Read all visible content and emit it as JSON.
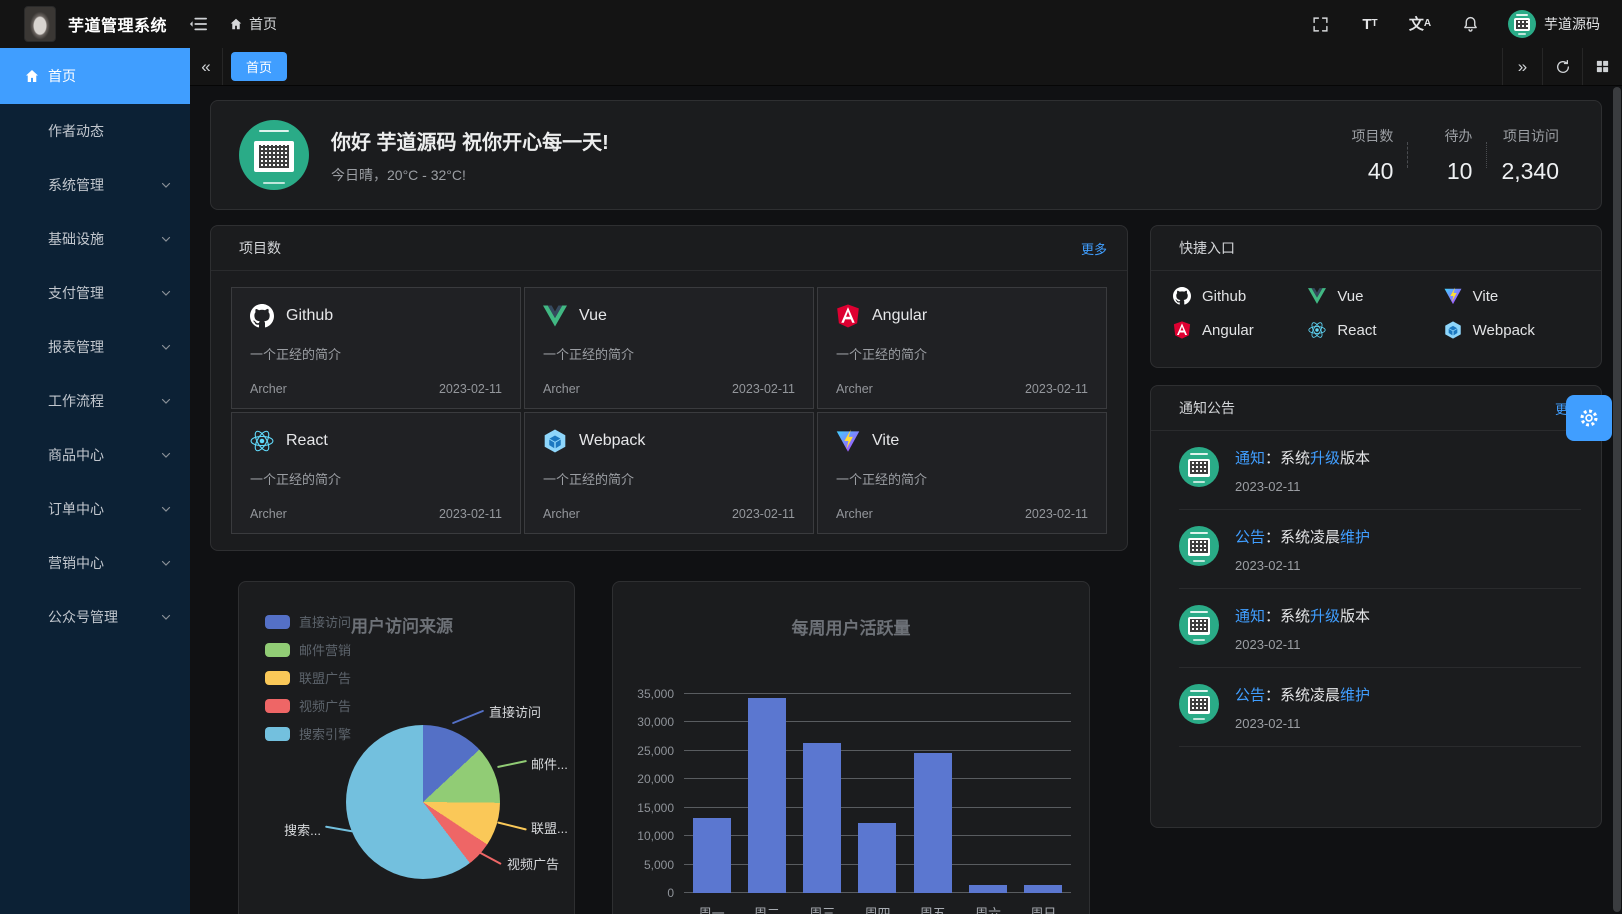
{
  "header": {
    "title": "芋道管理系统",
    "breadcrumb": "首页",
    "username": "芋道源码",
    "icons": [
      "menu-fold",
      "fullscreen",
      "font-size",
      "locale",
      "bell"
    ]
  },
  "tabbar": {
    "collapse_left": "«",
    "expand_right": "»",
    "active_tab": "首页",
    "actions": [
      "refresh",
      "grid"
    ]
  },
  "sidebar": {
    "items": [
      {
        "label": "首页",
        "icon": "home",
        "active": true,
        "has_children": false
      },
      {
        "label": "作者动态",
        "active": false,
        "has_children": false
      },
      {
        "label": "系统管理",
        "active": false,
        "has_children": true
      },
      {
        "label": "基础设施",
        "active": false,
        "has_children": true
      },
      {
        "label": "支付管理",
        "active": false,
        "has_children": true
      },
      {
        "label": "报表管理",
        "active": false,
        "has_children": true
      },
      {
        "label": "工作流程",
        "active": false,
        "has_children": true
      },
      {
        "label": "商品中心",
        "active": false,
        "has_children": true
      },
      {
        "label": "订单中心",
        "active": false,
        "has_children": true
      },
      {
        "label": "营销中心",
        "active": false,
        "has_children": true
      },
      {
        "label": "公众号管理",
        "active": false,
        "has_children": true
      }
    ]
  },
  "greeting": {
    "title": "你好 芋道源码 祝你开心每一天!",
    "subtitle": "今日晴，20°C - 32°C!"
  },
  "stats": [
    {
      "label": "项目数",
      "value": "40"
    },
    {
      "label": "待办",
      "value": "10"
    },
    {
      "label": "项目访问",
      "value": "2,340"
    }
  ],
  "projects_panel": {
    "title": "项目数",
    "more": "更多",
    "cards": [
      {
        "name": "Github",
        "icon": "github",
        "desc": "一个正经的简介",
        "author": "Archer",
        "date": "2023-02-11"
      },
      {
        "name": "Vue",
        "icon": "vue",
        "desc": "一个正经的简介",
        "author": "Archer",
        "date": "2023-02-11"
      },
      {
        "name": "Angular",
        "icon": "angular",
        "desc": "一个正经的简介",
        "author": "Archer",
        "date": "2023-02-11"
      },
      {
        "name": "React",
        "icon": "react",
        "desc": "一个正经的简介",
        "author": "Archer",
        "date": "2023-02-11"
      },
      {
        "name": "Webpack",
        "icon": "webpack",
        "desc": "一个正经的简介",
        "author": "Archer",
        "date": "2023-02-11"
      },
      {
        "name": "Vite",
        "icon": "vite",
        "desc": "一个正经的简介",
        "author": "Archer",
        "date": "2023-02-11"
      }
    ]
  },
  "shortcuts_panel": {
    "title": "快捷入口",
    "items": [
      {
        "name": "Github",
        "icon": "github"
      },
      {
        "name": "Vue",
        "icon": "vue"
      },
      {
        "name": "Vite",
        "icon": "vite"
      },
      {
        "name": "Angular",
        "icon": "angular"
      },
      {
        "name": "React",
        "icon": "react"
      },
      {
        "name": "Webpack",
        "icon": "webpack"
      }
    ]
  },
  "notice_panel": {
    "title": "通知公告",
    "more": "更多",
    "items": [
      {
        "segments": [
          {
            "text": "通知",
            "highlight": true
          },
          {
            "text": "：系统",
            "highlight": false
          },
          {
            "text": "升级",
            "highlight": true
          },
          {
            "text": "版本",
            "highlight": false
          }
        ],
        "date": "2023-02-11"
      },
      {
        "segments": [
          {
            "text": "公告",
            "highlight": true
          },
          {
            "text": "：系统凌晨",
            "highlight": false
          },
          {
            "text": "维护",
            "highlight": true
          }
        ],
        "date": "2023-02-11"
      },
      {
        "segments": [
          {
            "text": "通知",
            "highlight": true
          },
          {
            "text": "：系统",
            "highlight": false
          },
          {
            "text": "升级",
            "highlight": true
          },
          {
            "text": "版本",
            "highlight": false
          }
        ],
        "date": "2023-02-11"
      },
      {
        "segments": [
          {
            "text": "公告",
            "highlight": true
          },
          {
            "text": "：系统凌晨",
            "highlight": false
          },
          {
            "text": "维护",
            "highlight": true
          }
        ],
        "date": "2023-02-11"
      }
    ]
  },
  "chart_data": [
    {
      "type": "pie",
      "title": "用户访问来源",
      "legend_position": "left",
      "series": [
        {
          "name": "直接访问",
          "value": 335,
          "color": "#5470c6",
          "callout": "直接访问"
        },
        {
          "name": "邮件营销",
          "value": 310,
          "color": "#91cc75",
          "callout": "邮件..."
        },
        {
          "name": "联盟广告",
          "value": 234,
          "color": "#fac858",
          "callout": "联盟..."
        },
        {
          "name": "视频广告",
          "value": 135,
          "color": "#ee6666",
          "callout": "视频广告"
        },
        {
          "name": "搜索引擎",
          "value": 1548,
          "color": "#73c0de",
          "callout": "搜索..."
        }
      ]
    },
    {
      "type": "bar",
      "title": "每周用户活跃量",
      "categories": [
        "周一",
        "周二",
        "周三",
        "周四",
        "周五",
        "周六",
        "周日"
      ],
      "values": [
        13253,
        34235,
        26321,
        12340,
        24643,
        1322,
        1324
      ],
      "ylim": [
        0,
        35000
      ],
      "ytick_step": 5000,
      "bar_color": "#5b77d0",
      "grid": true,
      "legend_position": "none"
    }
  ],
  "colors": {
    "primary": "#409eff",
    "pie_palette": [
      "#5470c6",
      "#91cc75",
      "#fac858",
      "#ee6666",
      "#73c0de"
    ]
  }
}
